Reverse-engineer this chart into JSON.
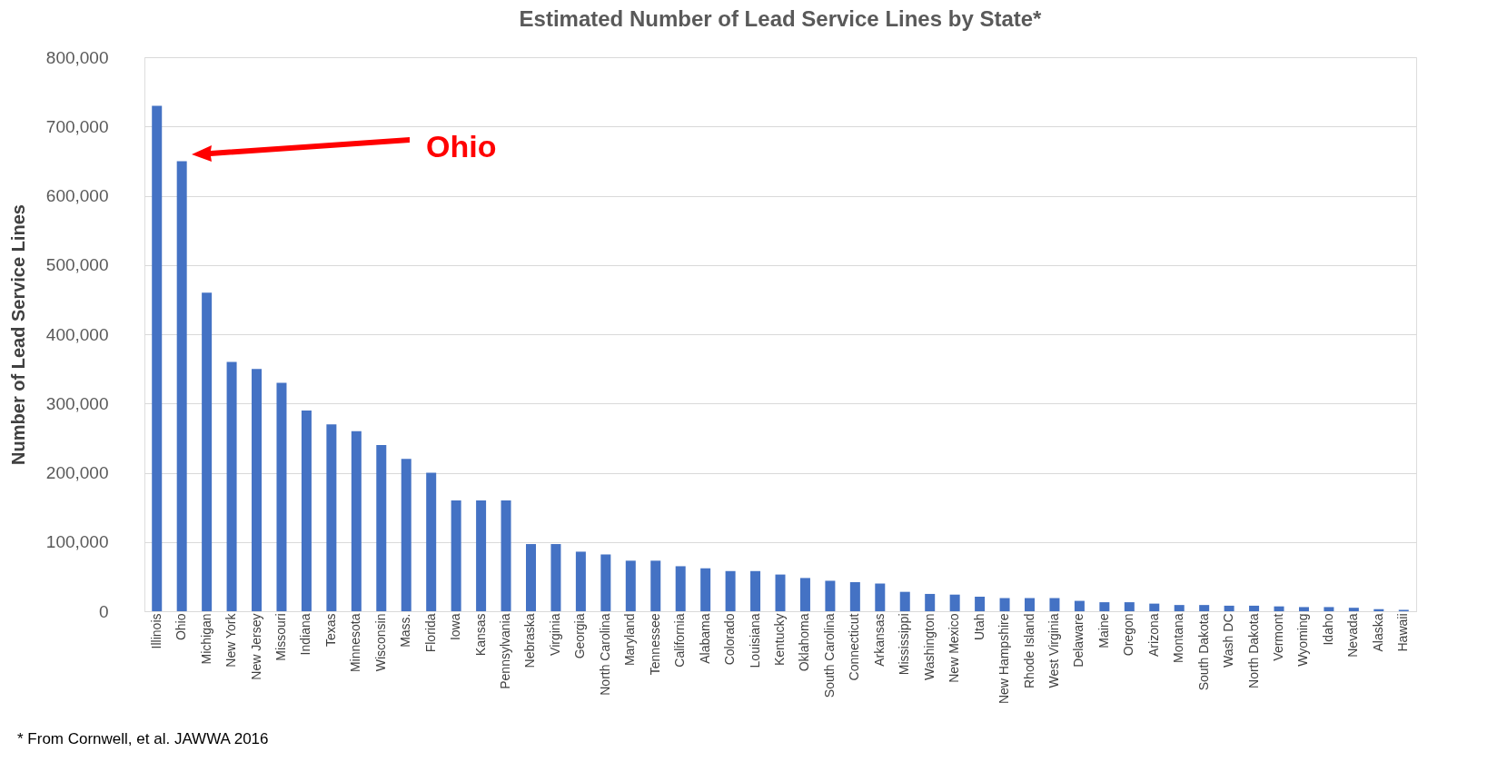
{
  "chart_data": {
    "type": "bar",
    "title": "Estimated Number of Lead Service Lines by State*",
    "ylabel": "Number of Lead Service Lines",
    "categories": [
      "Illinois",
      "Ohio",
      "Michigan",
      "New York",
      "New Jersey",
      "Missouri",
      "Indiana",
      "Texas",
      "Minnesota",
      "Wisconsin",
      "Mass.",
      "Florida",
      "Iowa",
      "Kansas",
      "Pennsylvania",
      "Nebraska",
      "Virginia",
      "Georgia",
      "North Carolina",
      "Maryland",
      "Tennessee",
      "California",
      "Alabama",
      "Colorado",
      "Louisiana",
      "Kentucky",
      "Oklahoma",
      "South Carolina",
      "Connecticut",
      "Arkansas",
      "Mississippi",
      "Washington",
      "New Mexico",
      "Utah",
      "New Hampshire",
      "Rhode Island",
      "West Virginia",
      "Delaware",
      "Maine",
      "Oregon",
      "Arizona",
      "Montana",
      "South Dakota",
      "Wash DC",
      "North Dakota",
      "Vermont",
      "Wyoming",
      "Idaho",
      "Nevada",
      "Alaska",
      "Hawaii"
    ],
    "values": [
      730000,
      650000,
      460000,
      360000,
      350000,
      330000,
      290000,
      270000,
      260000,
      240000,
      220000,
      200000,
      160000,
      160000,
      160000,
      97000,
      97000,
      86000,
      82000,
      73000,
      73000,
      65000,
      62000,
      58000,
      58000,
      53000,
      48000,
      44000,
      42000,
      40000,
      28000,
      25000,
      24000,
      21000,
      19000,
      19000,
      19000,
      15000,
      13000,
      13000,
      11000,
      9000,
      9000,
      8000,
      8000,
      7000,
      6000,
      6000,
      5000,
      3000,
      2000
    ],
    "color": "#4472c4",
    "ylim": [
      0,
      800000
    ],
    "yticks": [
      0,
      {
        "value": 100000,
        "label": "100,000"
      },
      {
        "value": 200000,
        "label": "200,000"
      },
      {
        "value": 300000,
        "label": "300,000"
      },
      {
        "value": 400000,
        "label": "400,000"
      },
      {
        "value": 500000,
        "label": "500,000"
      },
      {
        "value": 600000,
        "label": "600,000"
      },
      {
        "value": 700000,
        "label": "700,000"
      },
      {
        "value": 800000,
        "label": "800,000"
      }
    ],
    "grid": "y",
    "annotations": [
      "Ohio",
      "* From Cornwell, et al. JAWWA 2016"
    ]
  }
}
